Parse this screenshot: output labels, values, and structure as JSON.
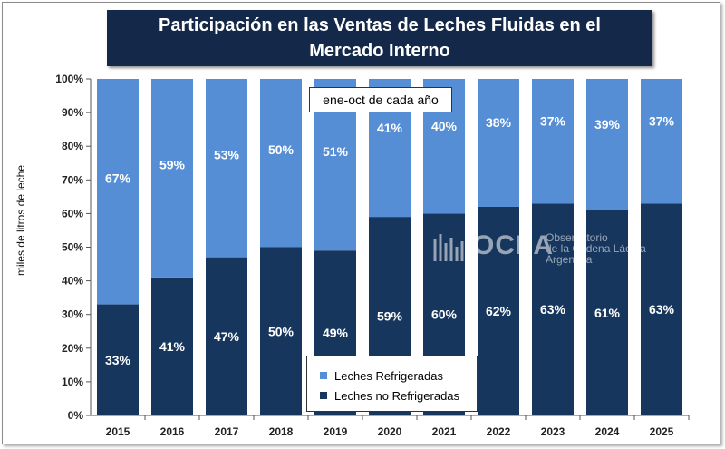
{
  "chart_data": {
    "type": "bar",
    "stacked": true,
    "title": "Participación  en las Ventas de Leches Fluidas  en el Mercado Interno",
    "ylabel": "miles de litros de leche",
    "xlabel": "",
    "categories": [
      "2015",
      "2016",
      "2017",
      "2018",
      "2019",
      "2020",
      "2021",
      "2022",
      "2023",
      "2024",
      "2025"
    ],
    "series": [
      {
        "name": "Leches no Refrigeradas",
        "color": "#17365d",
        "values": [
          33,
          41,
          47,
          50,
          49,
          59,
          60,
          62,
          63,
          61,
          63
        ],
        "labels": [
          "33%",
          "41%",
          "47%",
          "50%",
          "49%",
          "59%",
          "60%",
          "62%",
          "63%",
          "61%",
          "63%"
        ]
      },
      {
        "name": "Leches Refrigeradas",
        "color": "#558ed5",
        "values": [
          67,
          59,
          53,
          50,
          51,
          41,
          40,
          38,
          37,
          39,
          37
        ],
        "labels": [
          "67%",
          "59%",
          "53%",
          "50%",
          "51%",
          "41%",
          "40%",
          "38%",
          "37%",
          "39%",
          "37%"
        ]
      }
    ],
    "ylim": [
      0,
      100
    ],
    "yticks": [
      "0%",
      "10%",
      "20%",
      "30%",
      "40%",
      "50%",
      "60%",
      "70%",
      "80%",
      "90%",
      "100%"
    ],
    "annotation": "ene-oct de cada año",
    "legend_position": "bottom-center",
    "grid": false
  },
  "logo": {
    "word": "OCLA",
    "sub_lines": [
      "Observatorio",
      "de la Cadena Láctea",
      "Argentina"
    ]
  }
}
